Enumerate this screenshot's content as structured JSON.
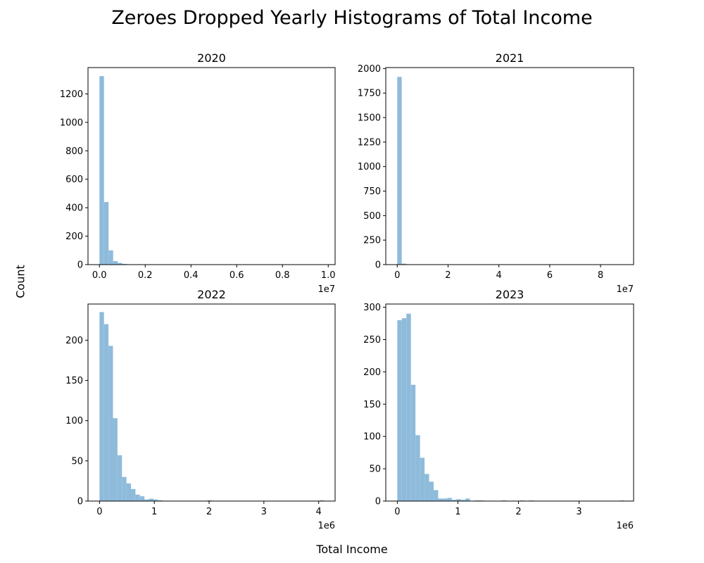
{
  "figure": {
    "title": "Zeroes Dropped Yearly Histograms of Total Income",
    "xlabel": "Total Income",
    "ylabel": "Count",
    "bar_color": "#8fbbdb"
  },
  "chart_data": [
    {
      "type": "bar",
      "title": "2020",
      "xlabel": "",
      "ylabel": "",
      "x_offset_label": "1e7",
      "xlim": [
        -0.05,
        1.03
      ],
      "ylim": [
        0,
        1385
      ],
      "xticks": [
        0.0,
        0.2,
        0.4,
        0.6,
        0.8,
        1.0
      ],
      "xtick_labels": [
        "0.0",
        "0.2",
        "0.4",
        "0.6",
        "0.8",
        "1.0"
      ],
      "yticks": [
        0,
        200,
        400,
        600,
        800,
        1000,
        1200
      ],
      "bin_start": 0.0,
      "bin_width": 0.02,
      "counts": [
        1325,
        440,
        100,
        25,
        12,
        5,
        2,
        1,
        1,
        1,
        0,
        0,
        0,
        0,
        0,
        0,
        0,
        0,
        0,
        0,
        0,
        0,
        0,
        0,
        0,
        0,
        0,
        0,
        0,
        0,
        0,
        0,
        0,
        0,
        0,
        0,
        0,
        0,
        0,
        0,
        0,
        0,
        0,
        0,
        0,
        0,
        0,
        0,
        0,
        1
      ],
      "grid": false
    },
    {
      "type": "bar",
      "title": "2021",
      "xlabel": "",
      "ylabel": "",
      "x_offset_label": "1e7",
      "xlim": [
        -0.45,
        9.3
      ],
      "ylim": [
        0,
        2010
      ],
      "xticks": [
        0,
        2,
        4,
        6,
        8
      ],
      "xtick_labels": [
        "0",
        "2",
        "4",
        "6",
        "8"
      ],
      "yticks": [
        0,
        250,
        500,
        750,
        1000,
        1250,
        1500,
        1750,
        2000
      ],
      "bin_start": 0.0,
      "bin_width": 0.177,
      "counts": [
        1915,
        10,
        2,
        1,
        0,
        0,
        0,
        0,
        0,
        0,
        0,
        0,
        0,
        0,
        0,
        0,
        0,
        0,
        0,
        0,
        0,
        0,
        0,
        0,
        0,
        0,
        0,
        0,
        0,
        0,
        0,
        0,
        0,
        0,
        0,
        0,
        0,
        0,
        0,
        0,
        0,
        0,
        0,
        0,
        0,
        0,
        0,
        0,
        0,
        1
      ],
      "grid": false
    },
    {
      "type": "bar",
      "title": "2022",
      "xlabel": "",
      "ylabel": "",
      "x_offset_label": "1e6",
      "xlim": [
        -0.21,
        4.3
      ],
      "ylim": [
        0,
        245
      ],
      "xticks": [
        0,
        1,
        2,
        3,
        4
      ],
      "xtick_labels": [
        "0",
        "1",
        "2",
        "3",
        "4"
      ],
      "yticks": [
        0,
        50,
        100,
        150,
        200
      ],
      "bin_start": 0.0,
      "bin_width": 0.082,
      "counts": [
        235,
        220,
        193,
        103,
        57,
        30,
        22,
        15,
        8,
        6,
        2,
        3,
        2,
        1,
        0,
        0,
        0,
        0,
        0,
        0,
        0,
        0,
        0,
        0,
        1,
        0,
        0,
        0,
        0,
        0,
        0,
        0,
        0,
        0,
        0,
        0,
        0,
        0,
        0,
        0,
        0,
        0,
        0,
        0,
        0,
        0,
        0,
        0,
        0,
        1
      ],
      "grid": false
    },
    {
      "type": "bar",
      "title": "2023",
      "xlabel": "",
      "ylabel": "",
      "x_offset_label": "1e6",
      "xlim": [
        -0.19,
        3.9
      ],
      "ylim": [
        0,
        305
      ],
      "xticks": [
        0,
        1,
        2,
        3
      ],
      "xtick_labels": [
        "0",
        "1",
        "2",
        "3"
      ],
      "yticks": [
        0,
        50,
        100,
        150,
        200,
        250,
        300
      ],
      "bin_start": 0.0,
      "bin_width": 0.075,
      "counts": [
        280,
        283,
        290,
        180,
        102,
        67,
        42,
        30,
        17,
        4,
        4,
        5,
        2,
        3,
        2,
        4,
        0,
        1,
        1,
        0,
        0,
        0,
        0,
        1,
        0,
        0,
        0,
        1,
        0,
        1,
        0,
        0,
        0,
        0,
        0,
        0,
        0,
        0,
        0,
        0,
        0,
        0,
        0,
        0,
        0,
        0,
        0,
        0,
        0,
        1
      ],
      "grid": false
    }
  ]
}
